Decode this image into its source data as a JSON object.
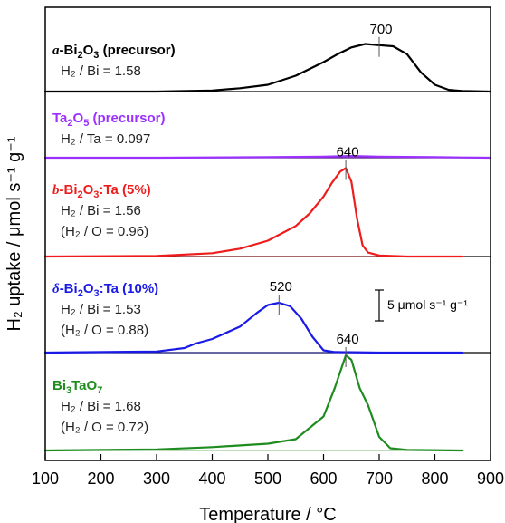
{
  "chart_data": {
    "type": "line",
    "xlabel": "Temperature / °C",
    "ylabel": "H₂ uptake / μmol s⁻¹ g⁻¹",
    "xlim": [
      100,
      900
    ],
    "x_ticks": [
      "100",
      "200",
      "300",
      "400",
      "500",
      "600",
      "700",
      "800",
      "900"
    ],
    "grid": false,
    "scale_bar": "5 μmol s⁻¹ g⁻¹",
    "panels": [
      {
        "name": "a-Bi2O3 (precursor)",
        "label_prefix": "a",
        "label_main": "-Bi",
        "label_sub1": "2",
        "label_mid": "O",
        "label_sub2": "3",
        "label_tail": " (precursor)",
        "ratio_label": "H₂ / Bi = 1.58",
        "oxygen_label": "",
        "color": "#000000",
        "peak_label": "700",
        "peak_x": 700,
        "x": [
          100,
          200,
          300,
          400,
          450,
          500,
          550,
          600,
          625,
          650,
          675,
          700,
          725,
          750,
          775,
          800,
          825,
          850,
          900
        ],
        "y": [
          0.0,
          0.0,
          0.0,
          0.1,
          0.3,
          0.6,
          1.4,
          2.6,
          3.3,
          3.9,
          4.2,
          4.1,
          4.0,
          3.3,
          1.7,
          0.6,
          0.15,
          0.05,
          0.0
        ]
      },
      {
        "name": "Ta2O5 (precursor)",
        "label_prefix": "",
        "label_main": "Ta",
        "label_sub1": "2",
        "label_mid": "O",
        "label_sub2": "5",
        "label_tail": " (precursor)",
        "ratio_label": "H₂ / Ta = 0.097",
        "oxygen_label": "",
        "color": "#9B30FF",
        "peak_label": "",
        "peak_x": null,
        "x": [
          100,
          300,
          500,
          600,
          650,
          700,
          800,
          900
        ],
        "y": [
          0.0,
          0.0,
          0.05,
          0.1,
          0.15,
          0.1,
          0.05,
          0.0
        ]
      },
      {
        "name": "b-Bi2O3:Ta (5%)",
        "label_prefix": "b",
        "label_main": "-Bi",
        "label_sub1": "2",
        "label_mid": "O",
        "label_sub2": "3",
        "label_tail": ":Ta (5%)",
        "ratio_label": "H₂ / Bi = 1.56",
        "oxygen_label": "(H₂ / O = 0.96)",
        "color": "#EE1C1C",
        "peak_label": "640",
        "peak_x": 640,
        "x": [
          100,
          300,
          400,
          450,
          500,
          550,
          575,
          600,
          615,
          630,
          640,
          650,
          660,
          670,
          680,
          700,
          750,
          850
        ],
        "y": [
          0.0,
          0.05,
          0.3,
          0.7,
          1.4,
          2.7,
          3.8,
          5.3,
          6.5,
          7.5,
          7.8,
          6.6,
          3.4,
          1.0,
          0.35,
          0.1,
          0.0,
          0.0
        ]
      },
      {
        "name": "δ-Bi2O3:Ta (10%)",
        "label_prefix": "δ",
        "label_main": "-Bi",
        "label_sub1": "2",
        "label_mid": "O",
        "label_sub2": "3",
        "label_tail": ":Ta (10%)",
        "ratio_label": "H₂ / Bi = 1.53",
        "oxygen_label": "(H₂ / O = 0.88)",
        "color": "#1A1AE6",
        "peak_label": "520",
        "peak_x": 520,
        "x": [
          100,
          300,
          350,
          370,
          400,
          450,
          480,
          500,
          520,
          540,
          560,
          580,
          600,
          620,
          700,
          850
        ],
        "y": [
          0.0,
          0.1,
          0.4,
          0.8,
          1.2,
          2.3,
          3.5,
          4.2,
          4.4,
          4.1,
          3.0,
          1.4,
          0.2,
          0.05,
          0.0,
          0.0
        ]
      },
      {
        "name": "Bi3TaO7",
        "label_prefix": "",
        "label_main": "Bi",
        "label_sub1": "3",
        "label_mid": "TaO",
        "label_sub2": "7",
        "label_tail": "",
        "ratio_label": "H₂ / Bi = 1.68",
        "oxygen_label": "(H₂ / O = 0.72)",
        "color": "#1E8C1E",
        "peak_label": "640",
        "peak_x": 640,
        "x": [
          100,
          300,
          400,
          500,
          550,
          600,
          620,
          640,
          650,
          665,
          680,
          700,
          720,
          750,
          850
        ],
        "y": [
          0.0,
          0.1,
          0.3,
          0.6,
          1.0,
          3.0,
          5.5,
          8.4,
          8.0,
          5.5,
          4.0,
          1.2,
          0.2,
          0.05,
          0.0
        ]
      }
    ]
  }
}
